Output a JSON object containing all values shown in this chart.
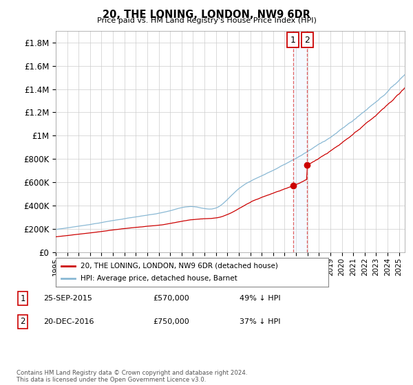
{
  "title": "20, THE LONING, LONDON, NW9 6DR",
  "subtitle": "Price paid vs. HM Land Registry's House Price Index (HPI)",
  "ylabel_ticks": [
    "£0",
    "£200K",
    "£400K",
    "£600K",
    "£800K",
    "£1M",
    "£1.2M",
    "£1.4M",
    "£1.6M",
    "£1.8M"
  ],
  "ytick_values": [
    0,
    200000,
    400000,
    600000,
    800000,
    1000000,
    1200000,
    1400000,
    1600000,
    1800000
  ],
  "ylim": [
    0,
    1900000
  ],
  "xlim_start": 1995.0,
  "xlim_end": 2025.5,
  "hpi_color": "#89b8d4",
  "price_color": "#cc0000",
  "dashed_line_color": "#dd4444",
  "transaction1_date": 2015.73,
  "transaction1_price": 570000,
  "transaction2_date": 2016.97,
  "transaction2_price": 750000,
  "legend_label_price": "20, THE LONING, LONDON, NW9 6DR (detached house)",
  "legend_label_hpi": "HPI: Average price, detached house, Barnet",
  "annotation1_label": "1",
  "annotation2_label": "2",
  "footer": "Contains HM Land Registry data © Crown copyright and database right 2024.\nThis data is licensed under the Open Government Licence v3.0.",
  "background_color": "#ffffff",
  "grid_color": "#cccccc",
  "shade_color": "#ddeeff"
}
